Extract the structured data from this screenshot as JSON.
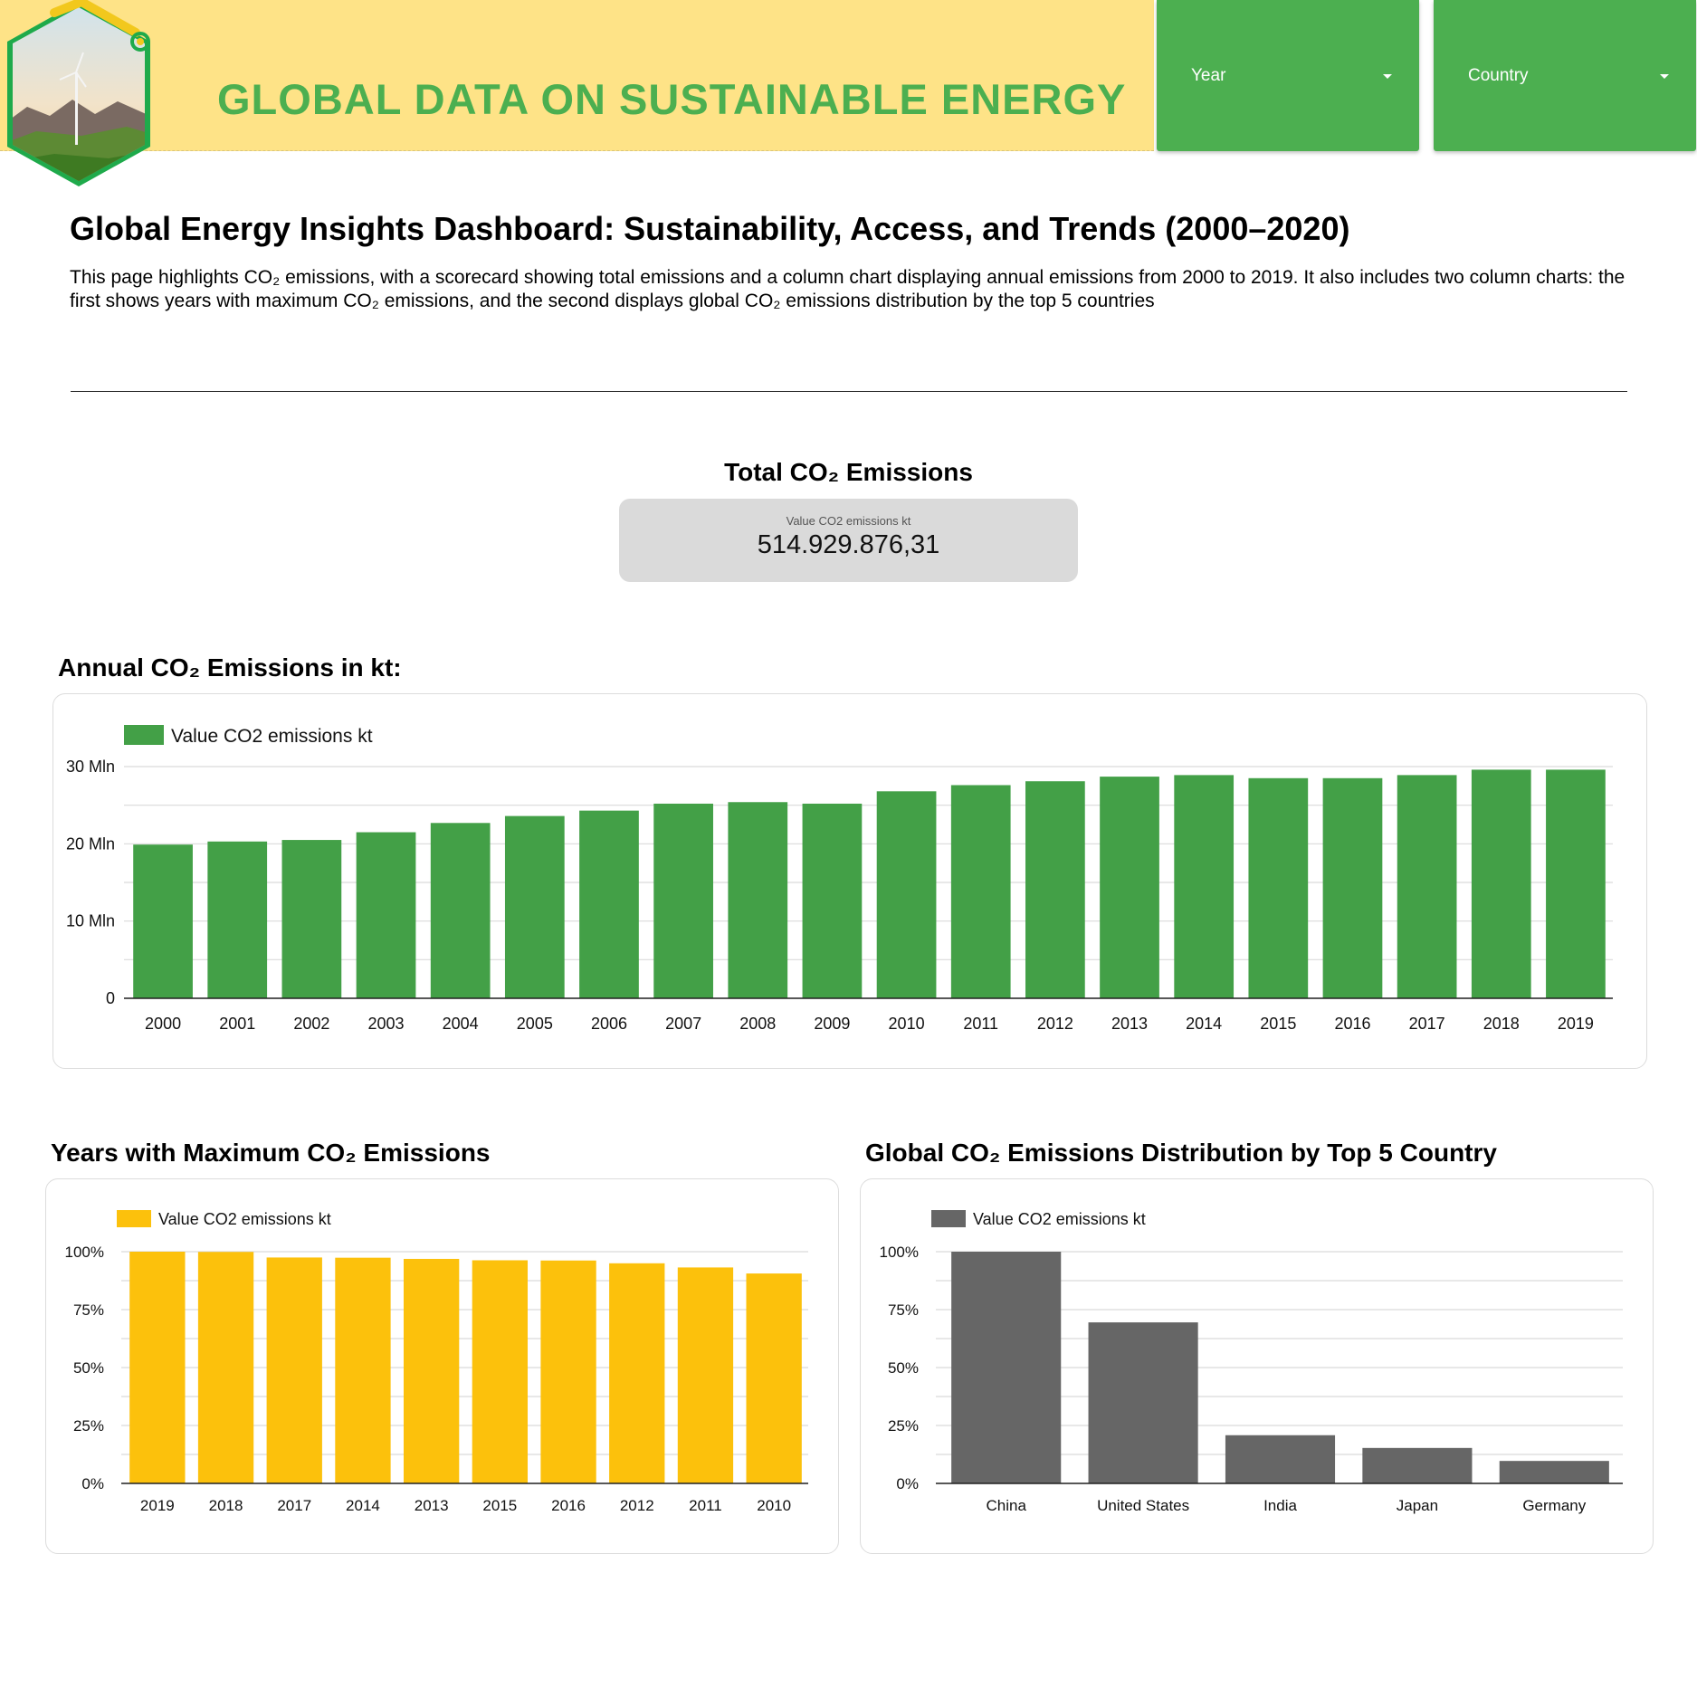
{
  "header": {
    "title": "GLOBAL DATA ON SUSTAINABLE ENERGY"
  },
  "filters": {
    "year_label": "Year",
    "country_label": "Country"
  },
  "page": {
    "title": "Global Energy Insights Dashboard: Sustainability, Access, and Trends (2000–2020)",
    "description": "This page highlights CO₂ emissions, with a scorecard showing total emissions and a column chart displaying annual emissions from 2000 to 2019. It also includes two column charts: the first shows years with maximum CO₂ emissions, and the second displays global CO₂ emissions distribution by the top 5 countries"
  },
  "scorecard": {
    "title": "Total CO₂ Emissions",
    "label": "Value CO2 emissions kt",
    "value": "514.929.876,31"
  },
  "colors": {
    "green": "#43a047",
    "yellow": "#fcc10c",
    "grey": "#666666",
    "header_bg": "#fee387",
    "title_green": "#4caf50"
  },
  "chart_data": [
    {
      "type": "bar",
      "title": "Annual CO₂ Emissions in kt:",
      "legend": "Value CO2 emissions kt",
      "color": "#43a047",
      "categories": [
        "2000",
        "2001",
        "2002",
        "2003",
        "2004",
        "2005",
        "2006",
        "2007",
        "2008",
        "2009",
        "2010",
        "2011",
        "2012",
        "2013",
        "2014",
        "2015",
        "2016",
        "2017",
        "2018",
        "2019"
      ],
      "values": [
        19.9,
        20.3,
        20.5,
        21.5,
        22.7,
        23.6,
        24.3,
        25.2,
        25.4,
        25.2,
        26.8,
        27.6,
        28.1,
        28.7,
        28.9,
        28.5,
        28.5,
        28.9,
        29.6,
        29.6
      ],
      "unit": "Mln",
      "yticks": [
        "0",
        "10 Mln",
        "20 Mln",
        "30 Mln"
      ],
      "ylim": [
        0,
        30
      ],
      "grid": true,
      "legend_position": "top-left"
    },
    {
      "type": "bar",
      "title": "Years with Maximum CO₂ Emissions",
      "legend": "Value CO2 emissions kt",
      "color": "#fcc10c",
      "categories": [
        "2019",
        "2018",
        "2017",
        "2014",
        "2013",
        "2015",
        "2016",
        "2012",
        "2011",
        "2010"
      ],
      "values": [
        100,
        99.9,
        97.5,
        97.4,
        96.9,
        96.3,
        96.2,
        95.0,
        93.2,
        90.6
      ],
      "unit": "%",
      "yticks": [
        "0%",
        "25%",
        "50%",
        "75%",
        "100%"
      ],
      "ylim": [
        0,
        100
      ],
      "grid": true,
      "legend_position": "top-left"
    },
    {
      "type": "bar",
      "title": "Global CO₂ Emissions Distribution by Top 5 Country",
      "legend": "Value CO2 emissions kt",
      "color": "#666666",
      "categories": [
        "China",
        "United States",
        "India",
        "Japan",
        "Germany"
      ],
      "values": [
        100,
        69.5,
        20.8,
        15.3,
        9.7
      ],
      "unit": "%",
      "yticks": [
        "0%",
        "25%",
        "50%",
        "75%",
        "100%"
      ],
      "ylim": [
        0,
        100
      ],
      "grid": true,
      "legend_position": "top-left"
    }
  ]
}
